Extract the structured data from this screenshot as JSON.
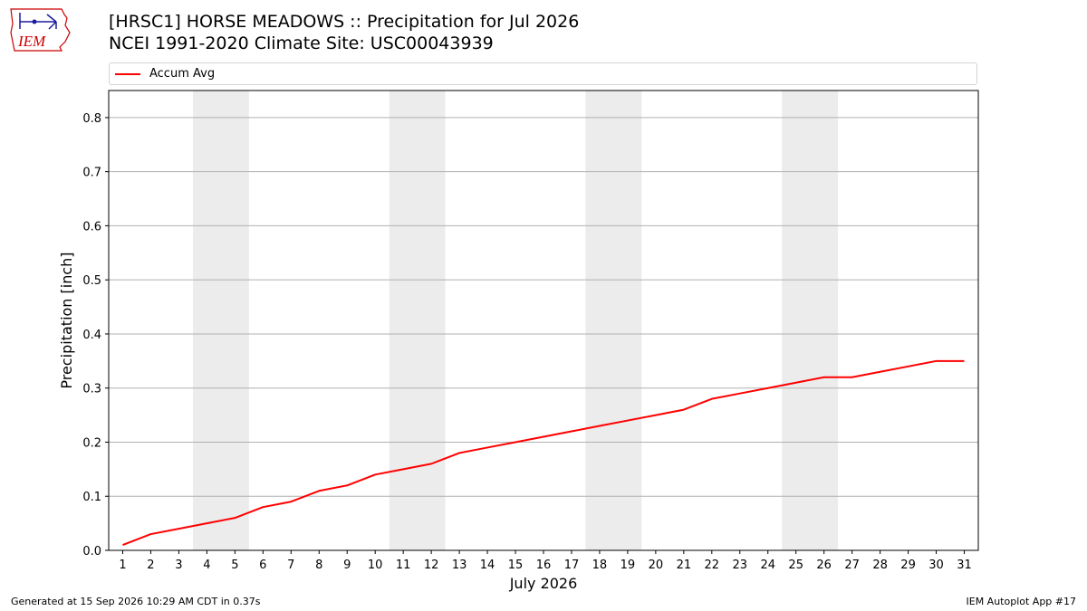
{
  "header": {
    "title_line1": "[HRSC1] HORSE MEADOWS :: Precipitation for Jul 2026",
    "title_line2": "NCEI 1991-2020 Climate Site: USC00043939"
  },
  "logo": {
    "text": "IEM",
    "icon": "iem-logo-icon",
    "color": "#cc0000"
  },
  "legend": {
    "entries": [
      {
        "label": "Accum Avg",
        "color": "#ff0000"
      }
    ]
  },
  "footer": {
    "left": "Generated at 15 Sep 2026 10:29 AM CDT in 0.37s",
    "right": "IEM Autoplot App #17"
  },
  "chart_data": {
    "type": "line",
    "title": "[HRSC1] HORSE MEADOWS :: Precipitation for Jul 2026",
    "subtitle": "NCEI 1991-2020 Climate Site: USC00043939",
    "xlabel": "July 2026",
    "ylabel": "Precipitation [inch]",
    "x": [
      1,
      2,
      3,
      4,
      5,
      6,
      7,
      8,
      9,
      10,
      11,
      12,
      13,
      14,
      15,
      16,
      17,
      18,
      19,
      20,
      21,
      22,
      23,
      24,
      25,
      26,
      27,
      28,
      29,
      30,
      31
    ],
    "xlim": [
      0.5,
      31.5
    ],
    "ylim": [
      0,
      0.85
    ],
    "yticks": [
      0.0,
      0.1,
      0.2,
      0.3,
      0.4,
      0.5,
      0.6,
      0.7,
      0.8
    ],
    "ytick_labels": [
      "0.0",
      "0.1",
      "0.2",
      "0.3",
      "0.4",
      "0.5",
      "0.6",
      "0.7",
      "0.8"
    ],
    "xtick_labels": [
      "1",
      "2",
      "3",
      "4",
      "5",
      "6",
      "7",
      "8",
      "9",
      "10",
      "11",
      "12",
      "13",
      "14",
      "15",
      "16",
      "17",
      "18",
      "19",
      "20",
      "21",
      "22",
      "23",
      "24",
      "25",
      "26",
      "27",
      "28",
      "29",
      "30",
      "31"
    ],
    "grid": "horizontal",
    "legend_position": "top",
    "weekend_shading": [
      [
        3.5,
        5.5
      ],
      [
        10.5,
        12.5
      ],
      [
        17.5,
        19.5
      ],
      [
        24.5,
        26.5
      ]
    ],
    "shading_color": "#ececec",
    "series": [
      {
        "name": "Accum Avg",
        "color": "#ff0000",
        "values": [
          0.01,
          0.03,
          0.04,
          0.05,
          0.06,
          0.08,
          0.09,
          0.11,
          0.12,
          0.14,
          0.15,
          0.16,
          0.18,
          0.19,
          0.2,
          0.21,
          0.22,
          0.23,
          0.24,
          0.25,
          0.26,
          0.28,
          0.29,
          0.3,
          0.31,
          0.32,
          0.32,
          0.33,
          0.34,
          0.35,
          0.35
        ]
      }
    ]
  }
}
